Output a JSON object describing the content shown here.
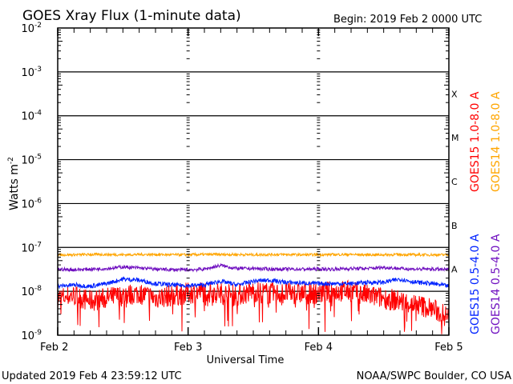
{
  "chart_data": {
    "type": "line",
    "title": "GOES Xray Flux (1-minute data)",
    "begin_label": "Begin:  2019 Feb 2 0000 UTC",
    "xlabel": "Universal Time",
    "ylabel": "Watts m",
    "ylabel_sup": "-2",
    "x_ticks": [
      "Feb 2",
      "Feb 3",
      "Feb 4",
      "Feb 5"
    ],
    "xlim_days": [
      0,
      3
    ],
    "y_ticks": [
      {
        "base": "10",
        "exp": "-2",
        "v": -2
      },
      {
        "base": "10",
        "exp": "-3",
        "v": -3
      },
      {
        "base": "10",
        "exp": "-4",
        "v": -4
      },
      {
        "base": "10",
        "exp": "-5",
        "v": -5
      },
      {
        "base": "10",
        "exp": "-6",
        "v": -6
      },
      {
        "base": "10",
        "exp": "-7",
        "v": -7
      },
      {
        "base": "10",
        "exp": "-8",
        "v": -8
      },
      {
        "base": "10",
        "exp": "-9",
        "v": -9
      }
    ],
    "ylim_log10": [
      -9,
      -2
    ],
    "grid": true,
    "flare_classes": [
      {
        "label": "X",
        "v": -3.5
      },
      {
        "label": "M",
        "v": -4.5
      },
      {
        "label": "C",
        "v": -5.5
      },
      {
        "label": "B",
        "v": -6.5
      },
      {
        "label": "A",
        "v": -7.5
      }
    ],
    "sample_interval_hours": 3,
    "series": [
      {
        "name": "GOES15 1.0-8.0 A",
        "color": "#ff0000",
        "noise": 0.25,
        "values": [
          7e-09,
          8e-09,
          6e-09,
          7e-09,
          8e-09,
          9e-09,
          7e-09,
          8e-09,
          9e-09,
          1e-08,
          9e-09,
          8e-09,
          1e-08,
          9e-09,
          9e-09,
          9e-09,
          9e-09,
          1e-08,
          1e-08,
          8e-09,
          7e-09,
          6e-09,
          5e-09,
          4e-09,
          2.5e-09
        ]
      },
      {
        "name": "GOES14 1.0-8.0 A",
        "color": "#ffa500",
        "noise": 0.03,
        "values": [
          6.8e-08,
          6.8e-08,
          6.9e-08,
          6.9e-08,
          6.8e-08,
          6.9e-08,
          6.9e-08,
          6.8e-08,
          6.8e-08,
          6.9e-08,
          6.9e-08,
          6.9e-08,
          6.8e-08,
          6.9e-08,
          6.9e-08,
          6.8e-08,
          6.8e-08,
          6.9e-08,
          6.9e-08,
          6.8e-08,
          6.8e-08,
          6.9e-08,
          6.8e-08,
          6.8e-08,
          6.8e-08
        ]
      },
      {
        "name": "GOES15 0.5-4.0 A",
        "color": "#0022ff",
        "noise": 0.05,
        "values": [
          1.3e-08,
          1.4e-08,
          1.3e-08,
          1.5e-08,
          1.9e-08,
          1.8e-08,
          1.5e-08,
          1.4e-08,
          1.35e-08,
          1.4e-08,
          1.7e-08,
          1.4e-08,
          1.7e-08,
          1.8e-08,
          1.6e-08,
          1.55e-08,
          1.5e-08,
          1.5e-08,
          1.5e-08,
          1.6e-08,
          1.6e-08,
          1.9e-08,
          1.6e-08,
          1.5e-08,
          1.3e-08
        ]
      },
      {
        "name": "GOES14 0.5-4.0 A",
        "color": "#7010c0",
        "noise": 0.04,
        "values": [
          3.2e-08,
          3.1e-08,
          3.2e-08,
          3.3e-08,
          3.6e-08,
          3.4e-08,
          3.2e-08,
          3.1e-08,
          3.1e-08,
          3.2e-08,
          3.9e-08,
          3.3e-08,
          3.3e-08,
          3.2e-08,
          3.2e-08,
          3.2e-08,
          3.2e-08,
          3.2e-08,
          3.3e-08,
          3.3e-08,
          3.5e-08,
          3.3e-08,
          3.2e-08,
          3.2e-08,
          3.1e-08
        ]
      }
    ]
  },
  "footer": {
    "updated": "Updated 2019 Feb  4 23:59:12 UTC",
    "credit": "NOAA/SWPC Boulder, CO USA"
  }
}
